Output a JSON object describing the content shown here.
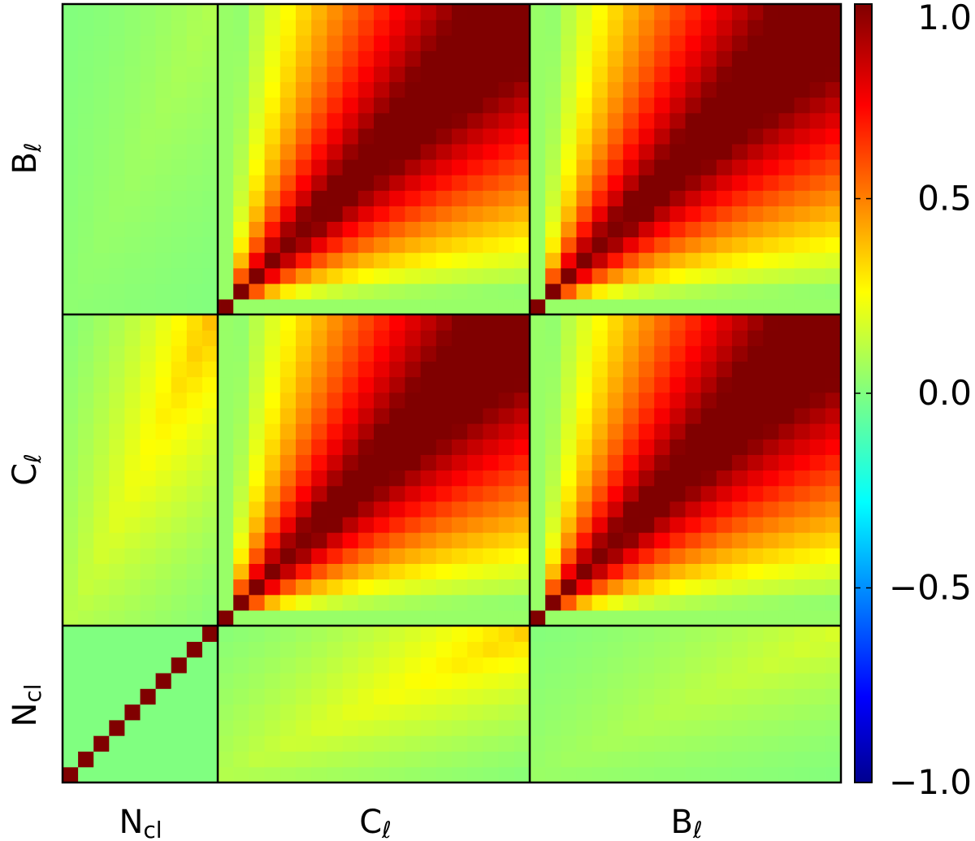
{
  "chart_data": {
    "type": "heatmap",
    "title": "",
    "description_blocks": [
      "N_cl",
      "C_l",
      "B_l"
    ],
    "block_labels": {
      "x": [
        {
          "main": "N",
          "sub": "cl"
        },
        {
          "main": "C",
          "sub": "ℓ"
        },
        {
          "main": "B",
          "sub": "ℓ"
        }
      ],
      "y": [
        {
          "main": "N",
          "sub": "cl"
        },
        {
          "main": "C",
          "sub": "ℓ"
        },
        {
          "main": "B",
          "sub": "ℓ"
        }
      ]
    },
    "block_bins": [
      10,
      20,
      20
    ],
    "colorbar": {
      "range": [
        -1.0,
        1.0
      ],
      "ticks": [
        -1.0,
        -0.5,
        0.0,
        0.5,
        1.0
      ],
      "tick_labels": [
        "−1.0",
        "−0.5",
        "0.0",
        "0.5",
        "1.0"
      ],
      "colormap": "jet"
    },
    "blocks": [
      {
        "row": "N_cl",
        "col": "N_cl",
        "pattern": "identity",
        "diagonal": 1.0,
        "off_diagonal": 0.0
      },
      {
        "row": "N_cl",
        "col": "C_l",
        "pattern": "cross",
        "max": 0.35
      },
      {
        "row": "N_cl",
        "col": "B_l",
        "pattern": "cross",
        "max": 0.18
      },
      {
        "row": "C_l",
        "col": "N_cl",
        "pattern": "cross",
        "max": 0.38
      },
      {
        "row": "C_l",
        "col": "C_l",
        "pattern": "auto",
        "diagonal": 1.0
      },
      {
        "row": "C_l",
        "col": "B_l",
        "pattern": "auto",
        "diagonal": 1.0
      },
      {
        "row": "B_l",
        "col": "N_cl",
        "pattern": "cross",
        "max": 0.1
      },
      {
        "row": "B_l",
        "col": "C_l",
        "pattern": "auto",
        "diagonal": 1.0
      },
      {
        "row": "B_l",
        "col": "B_l",
        "pattern": "auto",
        "diagonal": 1.0
      }
    ]
  }
}
